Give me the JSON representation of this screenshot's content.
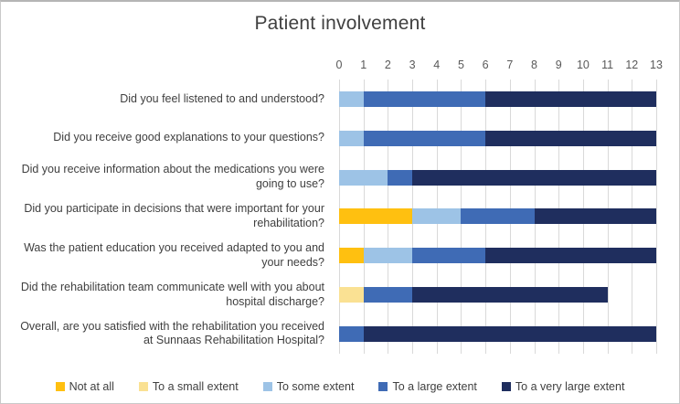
{
  "chart_data": {
    "type": "bar",
    "orientation": "horizontal",
    "stacked": true,
    "title": "Patient involvement",
    "x_axis": {
      "min": 0,
      "max": 13,
      "ticks": [
        0,
        1,
        2,
        3,
        4,
        5,
        6,
        7,
        8,
        9,
        10,
        11,
        12,
        13
      ],
      "position": "top"
    },
    "grid": true,
    "legend_position": "bottom",
    "categories": [
      "Did you feel listened to and understood?",
      "Did you receive good explanations to your questions?",
      "Did you receive information about the medications you were going to use?",
      "Did you participate in decisions that were important for your rehabilitation?",
      "Was the patient education you received adapted to you and your needs?",
      "Did the rehabilitation team communicate well with you about hospital discharge?",
      "Overall, are you satisfied with the rehabilitation you received at Sunnaas Rehabilitation Hospital?"
    ],
    "series": [
      {
        "name": "Not at all",
        "color": "#FFC010",
        "values": [
          0,
          0,
          0,
          3,
          1,
          0,
          0
        ]
      },
      {
        "name": "To a small extent",
        "color": "#FAE193",
        "values": [
          0,
          0,
          0,
          0,
          0,
          1,
          0
        ]
      },
      {
        "name": "To some extent",
        "color": "#9DC3E6",
        "values": [
          1,
          1,
          2,
          2,
          2,
          0,
          0
        ]
      },
      {
        "name": "To a large extent",
        "color": "#3F6BB5",
        "values": [
          5,
          5,
          1,
          3,
          3,
          2,
          1
        ]
      },
      {
        "name": "To a very large extent",
        "color": "#1F2E5E",
        "values": [
          7,
          7,
          10,
          5,
          7,
          8,
          12
        ]
      }
    ],
    "colors": {
      "gridline": "#d9d9d9",
      "tick_text": "#595959",
      "label_text": "#3f3f3f",
      "title_text": "#404040"
    }
  }
}
